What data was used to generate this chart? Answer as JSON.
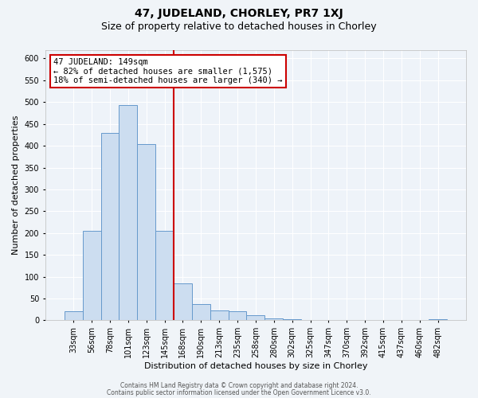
{
  "title": "47, JUDELAND, CHORLEY, PR7 1XJ",
  "subtitle": "Size of property relative to detached houses in Chorley",
  "xlabel": "Distribution of detached houses by size in Chorley",
  "ylabel": "Number of detached properties",
  "bar_labels": [
    "33sqm",
    "56sqm",
    "78sqm",
    "101sqm",
    "123sqm",
    "145sqm",
    "168sqm",
    "190sqm",
    "213sqm",
    "235sqm",
    "258sqm",
    "280sqm",
    "302sqm",
    "325sqm",
    "347sqm",
    "370sqm",
    "392sqm",
    "415sqm",
    "437sqm",
    "460sqm",
    "482sqm"
  ],
  "bar_values": [
    20,
    205,
    430,
    493,
    403,
    205,
    85,
    38,
    22,
    20,
    12,
    5,
    3,
    1,
    1,
    0,
    0,
    0,
    0,
    0,
    2
  ],
  "bar_color": "#ccddf0",
  "bar_edge_color": "#6699cc",
  "vline_x": 5.5,
  "vline_color": "#cc0000",
  "annotation_title": "47 JUDELAND: 149sqm",
  "annotation_line1": "← 82% of detached houses are smaller (1,575)",
  "annotation_line2": "18% of semi-detached houses are larger (340) →",
  "annotation_box_color": "#ffffff",
  "annotation_box_edge": "#cc0000",
  "ylim": [
    0,
    620
  ],
  "yticks": [
    0,
    50,
    100,
    150,
    200,
    250,
    300,
    350,
    400,
    450,
    500,
    550,
    600
  ],
  "footer1": "Contains HM Land Registry data © Crown copyright and database right 2024.",
  "footer2": "Contains public sector information licensed under the Open Government Licence v3.0.",
  "bg_color": "#f0f4f8",
  "plot_bg_color": "#eef3f9",
  "grid_color": "#ffffff",
  "title_fontsize": 10,
  "subtitle_fontsize": 9,
  "axis_label_fontsize": 8,
  "tick_fontsize": 7,
  "annotation_fontsize": 7.5,
  "footer_fontsize": 5.5
}
